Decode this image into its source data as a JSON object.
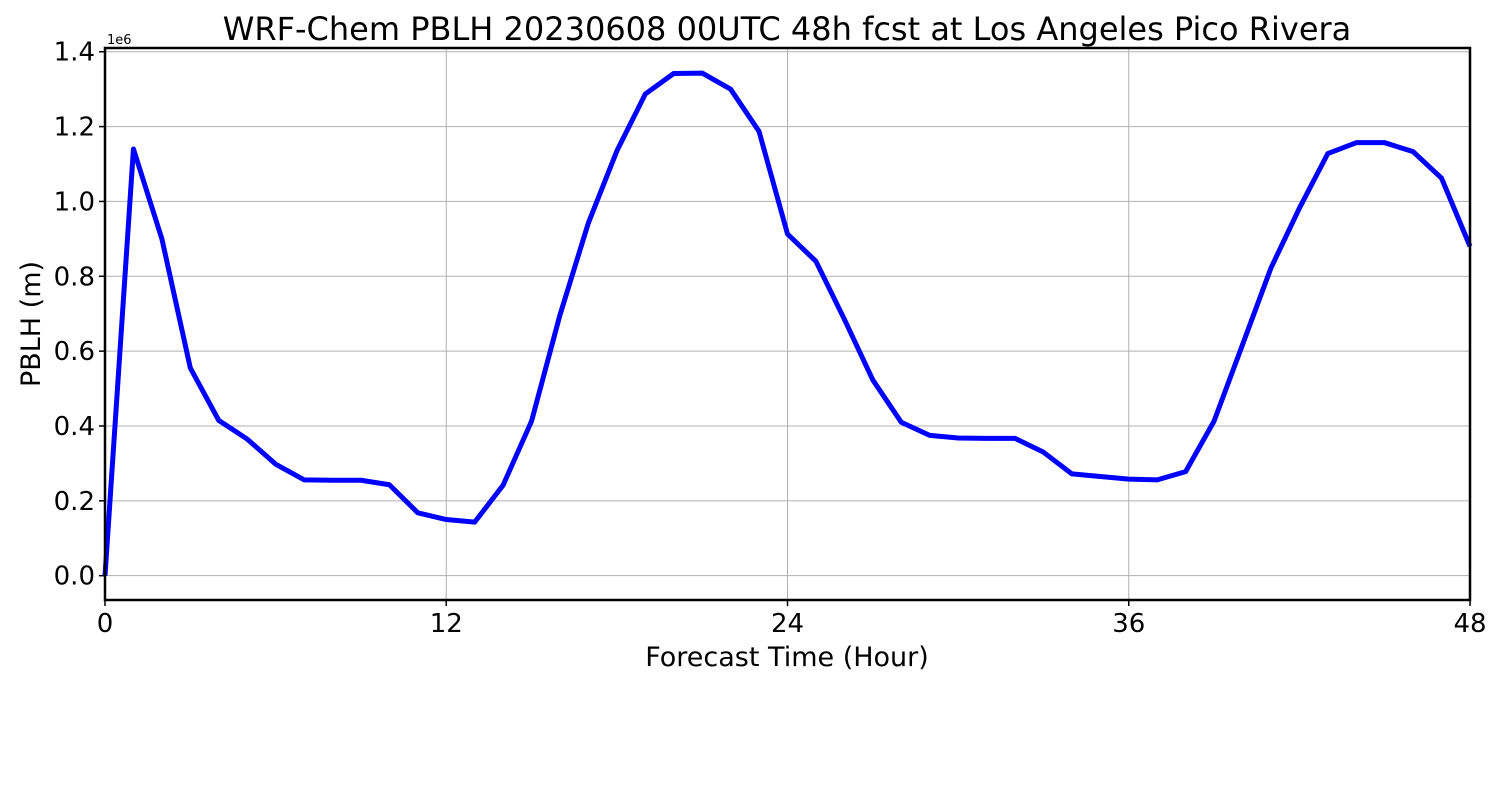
{
  "chart_data": {
    "type": "line",
    "title": "WRF-Chem PBLH  20230608 00UTC 48h fcst at Los Angeles Pico Rivera",
    "xlabel": "Forecast Time (Hour)",
    "ylabel": "PBLH  (m)",
    "y_offset_label": "1e6",
    "xlim": [
      0,
      48
    ],
    "ylim": [
      -0.065,
      1.41
    ],
    "x_ticks": [
      0,
      12,
      24,
      36,
      48
    ],
    "x_tick_labels": [
      "0",
      "12",
      "24",
      "36",
      "48"
    ],
    "y_ticks": [
      0.0,
      0.2,
      0.4,
      0.6,
      0.8,
      1.0,
      1.2,
      1.4
    ],
    "y_tick_labels": [
      "0.0",
      "0.2",
      "0.4",
      "0.6",
      "0.8",
      "1.0",
      "1.2",
      "1.4"
    ],
    "grid": true,
    "series": [
      {
        "color": "#0000ff",
        "x": [
          0,
          1,
          2,
          3,
          4,
          5,
          6,
          7,
          8,
          9,
          10,
          11,
          12,
          13,
          14,
          15,
          16,
          17,
          18,
          19,
          20,
          21,
          22,
          23,
          24,
          25,
          26,
          27,
          28,
          29,
          30,
          31,
          32,
          33,
          34,
          35,
          36,
          37,
          38,
          39,
          40,
          41,
          42,
          43,
          44,
          45,
          46,
          47,
          48
        ],
        "values": [
          0.0,
          1.14,
          0.9,
          0.555,
          0.415,
          0.365,
          0.298,
          0.256,
          0.255,
          0.255,
          0.243,
          0.168,
          0.15,
          0.143,
          0.242,
          0.413,
          0.697,
          0.943,
          1.135,
          1.287,
          1.342,
          1.343,
          1.3,
          1.187,
          0.913,
          0.84,
          0.685,
          0.523,
          0.41,
          0.375,
          0.368,
          0.367,
          0.367,
          0.33,
          0.272,
          0.265,
          0.258,
          0.256,
          0.278,
          0.413,
          0.617,
          0.822,
          0.982,
          1.128,
          1.157,
          1.157,
          1.133,
          1.062,
          0.88
        ]
      }
    ]
  }
}
